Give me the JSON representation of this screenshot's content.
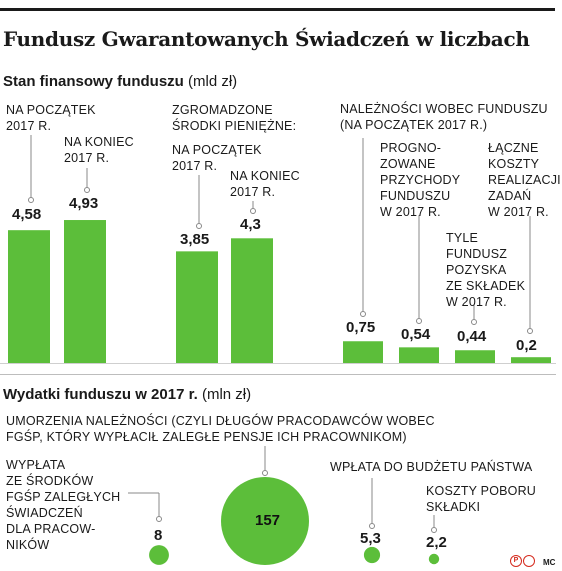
{
  "title": "Fundusz Gwarantowanych Świadczeń w liczbach",
  "section1": {
    "title": "Stan finansowy funduszu",
    "unit": "(mld zł)"
  },
  "section2": {
    "title": "Wydatki funduszu w 2017 r.",
    "unit": "(mln zł)"
  },
  "colors": {
    "green": "#5cbe3a",
    "leader": "#888888",
    "rule": "#bdbdbd"
  },
  "chart_data": [
    {
      "type": "bar",
      "title": "Stan finansowy funduszu",
      "unit": "mld zł",
      "groups": [
        {
          "name": "",
          "items": [
            {
              "label": "NA POCZĄTEK\n2017 R.",
              "value": 4.58,
              "text": "4,58"
            },
            {
              "label": "NA KONIEC\n2017 R.",
              "value": 4.93,
              "text": "4,93"
            }
          ]
        },
        {
          "name": "ZGROMADZONE\nŚRODKI PIENIĘŻNE:",
          "items": [
            {
              "label": "NA POCZĄTEK\n2017 R.",
              "value": 3.85,
              "text": "3,85"
            },
            {
              "label": "NA KONIEC\n2017 R.",
              "value": 4.3,
              "text": "4,3"
            }
          ]
        },
        {
          "name": "",
          "items": [
            {
              "label": "NALEŻNOŚCI WOBEC FUNDUSZU\n(NA POCZĄTEK 2017 R.)",
              "value": 0.75,
              "text": "0,75"
            },
            {
              "label": "PROGNO-\nZOWANE\nPRZYCHODY\nFUNDUSZU\nW 2017 R.",
              "value": 0.54,
              "text": "0,54"
            },
            {
              "label": "TYLE\nFUNDUSZ\nPOZYSKA\nZE SKŁADEK\nW 2017 R.",
              "value": 0.44,
              "text": "0,44"
            },
            {
              "label": "ŁĄCZNE\nKOSZTY\nREALIZACJI\nZADAŃ\nW 2017 R.",
              "value": 0.2,
              "text": "0,2"
            }
          ]
        }
      ]
    },
    {
      "type": "bubble",
      "title": "Wydatki funduszu w 2017 r.",
      "unit": "mln zł",
      "items": [
        {
          "label": "WYPŁATA\nZE ŚRODKÓW\nFGŚP ZALEGŁYCH\nŚWIADCZEŃ\nDLA PRACOW-\nNIKÓW",
          "value": 8,
          "text": "8"
        },
        {
          "label": "UMORZENIA NALEŻNOŚCI (CZYLI DŁUGÓW PRACODAWCÓW WOBEC\nFGŚP, KTÓRY WYPŁACIŁ ZALEGŁE PENSJE ICH PRACOWNIKOM)",
          "value": 157,
          "text": "157"
        },
        {
          "label": "WPŁATA DO BUDŻETU PAŃSTWA",
          "value": 5.3,
          "text": "5,3"
        },
        {
          "label": "KOSZTY POBORU\nSKŁADKI",
          "value": 2.2,
          "text": "2,2"
        }
      ]
    }
  ],
  "credit": {
    "logo": "P",
    "author": "MC"
  }
}
